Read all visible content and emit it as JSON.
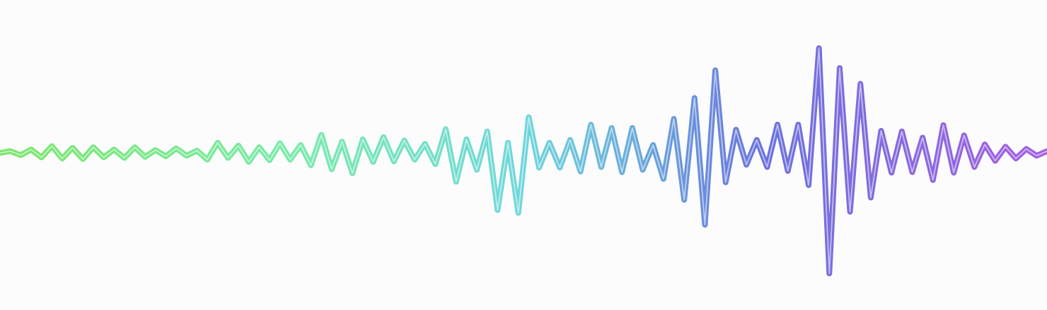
{
  "waveform": {
    "colors": {
      "background": "#fcfcfd",
      "start": "#6fe35c",
      "green_mid": "#6ae8a0",
      "cyan_mid": "#5fd3d8",
      "blue_mid": "#5a9fd6",
      "indigo": "#5a63d8",
      "end": "#9a4ddf"
    },
    "amplitudes": [
      0,
      0.3,
      -0.4,
      0.6,
      -0.8,
      1.2,
      -1.0,
      0.9,
      -1.1,
      1.0,
      -0.8,
      0.6,
      -0.9,
      1.0,
      -0.7,
      0.5,
      -0.6,
      0.8,
      -0.5,
      0.4,
      -1.2,
      1.8,
      -0.9,
      1.3,
      -1.6,
      1.0,
      -1.3,
      1.7,
      -1.2,
      1.4,
      -2.2,
      3.2,
      -2.9,
      2.0,
      -3.6,
      2.4,
      -1.6,
      2.8,
      -1.5,
      2.2,
      -1.2,
      1.6,
      -2.0,
      4.2,
      -5.1,
      2.4,
      -3.0,
      3.8,
      -10.1,
      1.8,
      -10.6,
      6.3,
      -2.6,
      1.8,
      -2.6,
      2.3,
      -3.3,
      5.0,
      -2.5,
      4.4,
      -3.4,
      4.4,
      -3.0,
      1.4,
      -4.6,
      6.0,
      -8.3,
      9.7,
      -12.7,
      14.6,
      -5.2,
      4.1,
      -2.1,
      2.3,
      -2.5,
      5.0,
      -3.2,
      5.0,
      -5.7,
      18.5,
      -21.3,
      15.0,
      -10.4,
      12.2,
      -7.9,
      3.9,
      -3.5,
      3.8,
      -3.4,
      2.7,
      -4.8,
      4.9,
      -3.5,
      3.1,
      -2.5,
      1.5,
      -1.4,
      1.1,
      -1.0,
      0.7,
      -0.5,
      0.3
    ]
  }
}
